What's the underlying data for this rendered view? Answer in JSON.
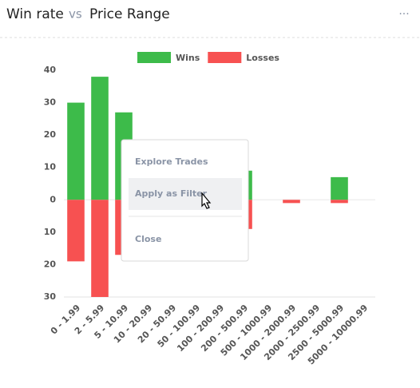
{
  "header": {
    "title": "Win rate",
    "vs": "vs",
    "subject": "Price Range",
    "menu_icon": "···"
  },
  "chart_data": {
    "type": "bar",
    "stacked": true,
    "categories": [
      "0 - 1.99",
      "2 - 5.99",
      "5 - 10.99",
      "10 - 20.99",
      "20 - 50.99",
      "50 - 100.99",
      "100 - 200.99",
      "200 - 500.99",
      "500 - 1000.99",
      "1000 - 2000.99",
      "2000 - 2500.99",
      "2500 - 5000.99",
      "5000 - 10000.99"
    ],
    "series": [
      {
        "name": "Wins",
        "color": "#3dbb4a",
        "values": [
          30,
          38,
          27,
          null,
          null,
          null,
          null,
          9,
          0,
          0,
          0,
          7,
          0
        ]
      },
      {
        "name": "Losses",
        "color": "#f75151",
        "values": [
          -19,
          -30,
          -17,
          null,
          null,
          null,
          null,
          -9,
          0,
          -1,
          0,
          -1,
          0
        ]
      }
    ],
    "ylim": [
      -30,
      40
    ],
    "yticks": [
      40,
      30,
      20,
      10,
      0,
      {
        "value": -10,
        "label": "10"
      },
      {
        "value": -20,
        "label": "20"
      },
      {
        "value": -30,
        "label": "30"
      }
    ],
    "grid": false,
    "legend": "top"
  },
  "context_menu": {
    "items": [
      "Explore Trades",
      "Apply as Filter",
      "Close"
    ]
  }
}
